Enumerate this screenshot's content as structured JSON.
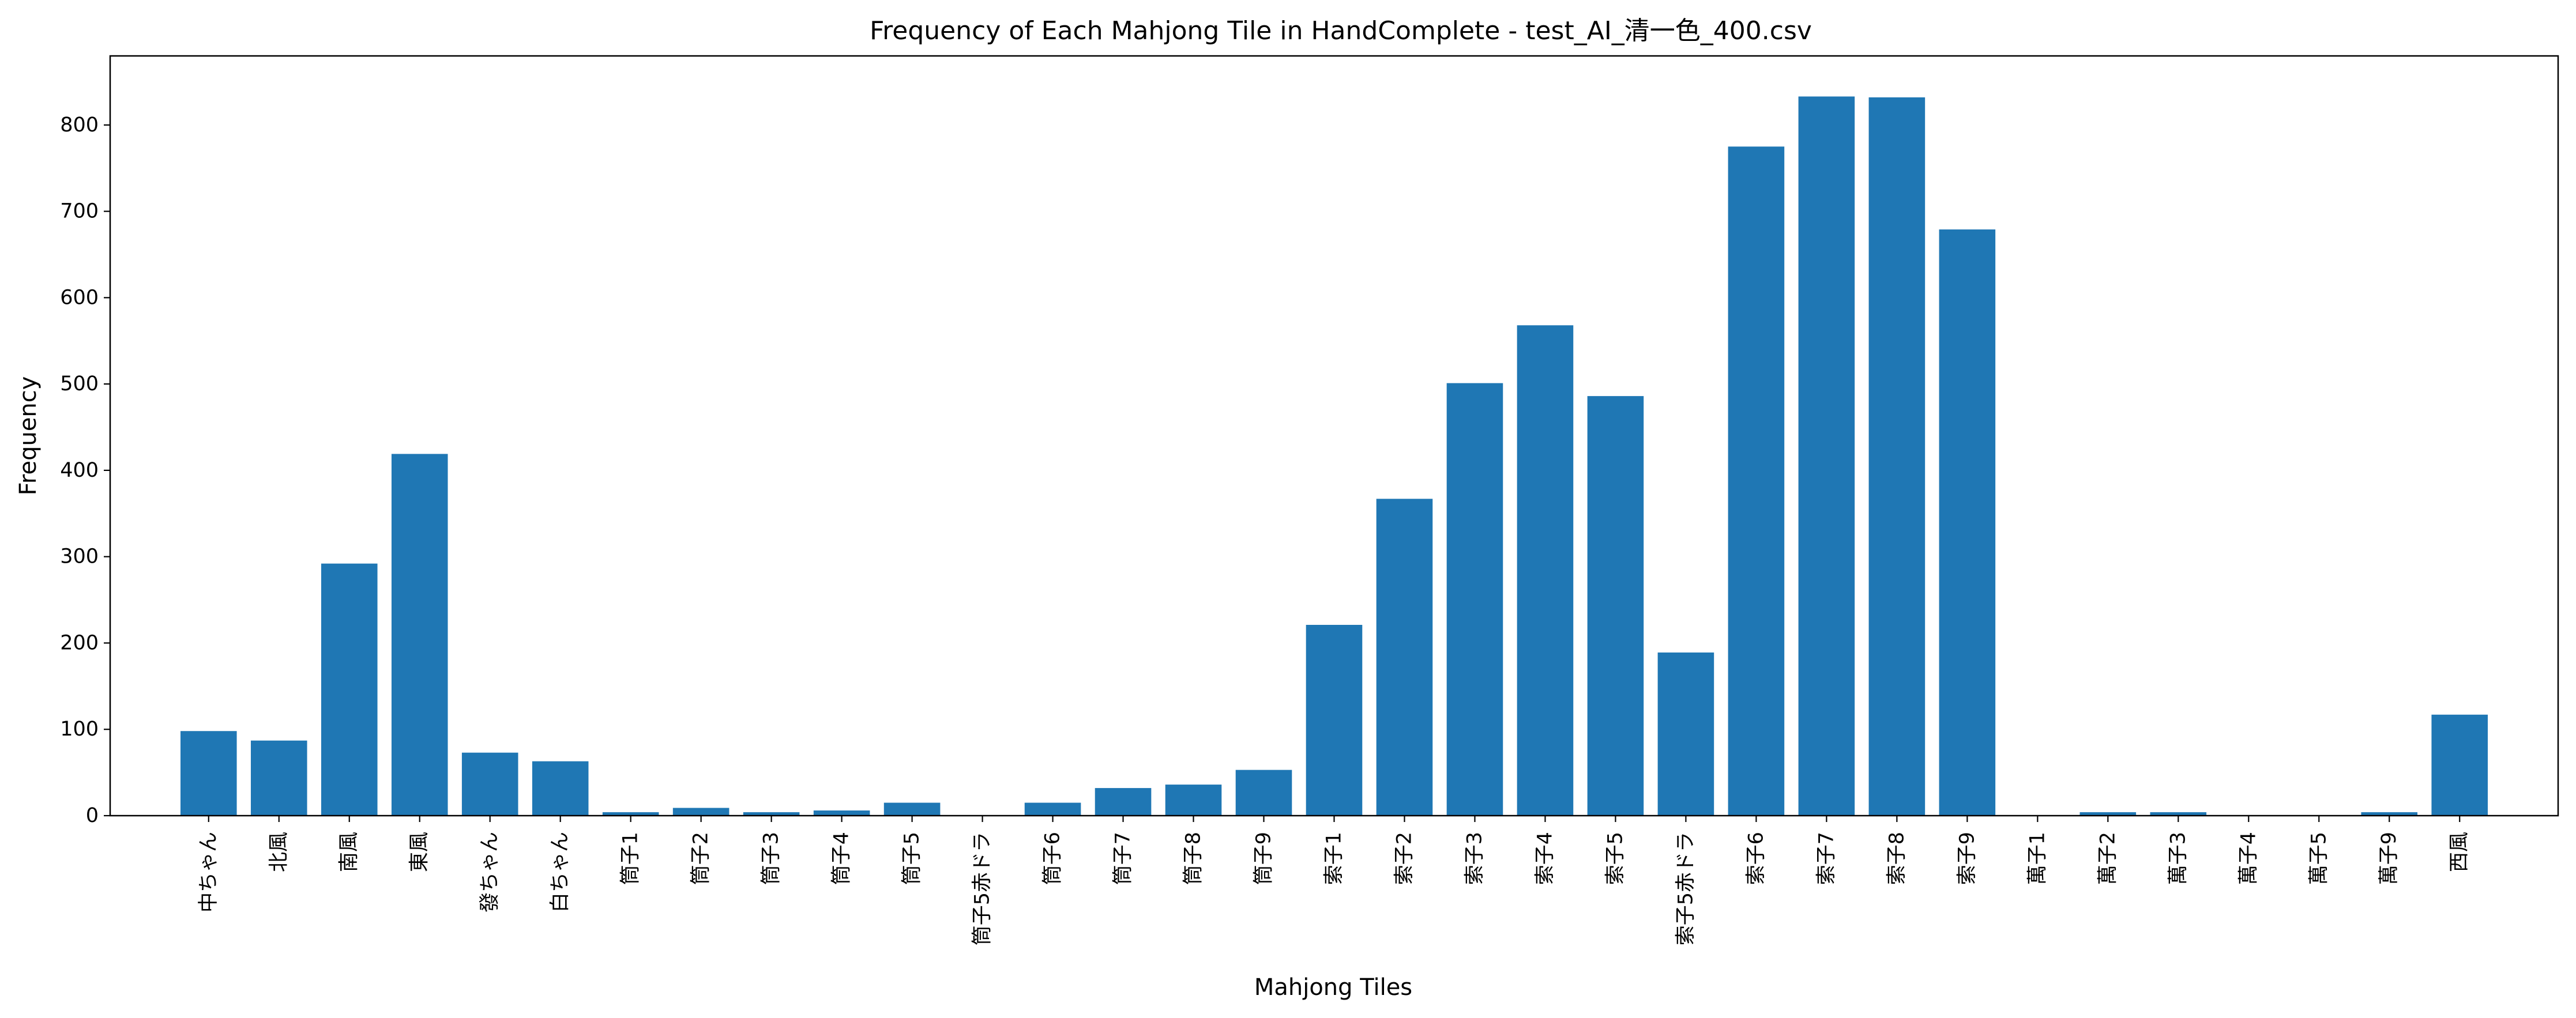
{
  "chart_data": {
    "type": "bar",
    "title": "Frequency of Each Mahjong Tile in HandComplete - test_AI_清一色_400.csv",
    "xlabel": "Mahjong Tiles",
    "ylabel": "Frequency",
    "ylim": [
      0,
      880
    ],
    "yticks": [
      0,
      100,
      200,
      300,
      400,
      500,
      600,
      700,
      800
    ],
    "grid": false,
    "bar_color": "#1f77b4",
    "categories": [
      "中ちゃん",
      "北風",
      "南風",
      "東風",
      "發ちゃん",
      "白ちゃん",
      "筒子1",
      "筒子2",
      "筒子3",
      "筒子4",
      "筒子5",
      "筒子5赤ドラ",
      "筒子6",
      "筒子7",
      "筒子8",
      "筒子9",
      "索子1",
      "索子2",
      "索子3",
      "索子4",
      "索子5",
      "索子5赤ドラ",
      "索子6",
      "索子7",
      "索子8",
      "索子9",
      "萬子1",
      "萬子2",
      "萬子3",
      "萬子4",
      "萬子5",
      "萬子9",
      "西風"
    ],
    "values": [
      98,
      87,
      292,
      419,
      73,
      63,
      4,
      9,
      4,
      6,
      15,
      0,
      15,
      32,
      36,
      53,
      221,
      367,
      501,
      568,
      486,
      189,
      775,
      833,
      832,
      679,
      0,
      4,
      4,
      0,
      0,
      4,
      117
    ]
  }
}
